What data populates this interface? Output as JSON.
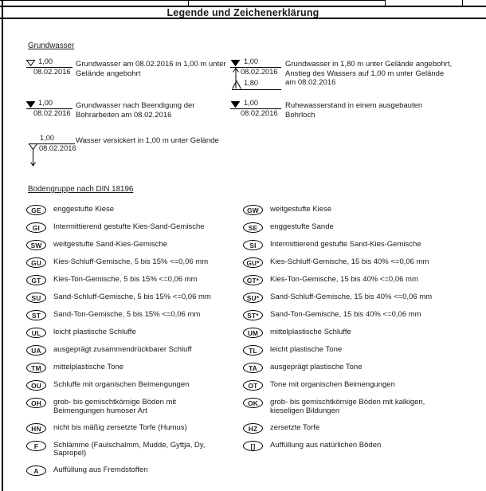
{
  "header": {
    "title": "Legende und Zeichenerklärung"
  },
  "groundwater": {
    "heading": "Grundwasser",
    "items": [
      {
        "symbol": "open-triangle",
        "depth": "1,00",
        "date": "08.02.2016",
        "desc": "Grundwasser am 08.02.2016 in 1,00 m unter Gelände angebohrt"
      },
      {
        "symbol": "filled-triangle",
        "depth": "1,00",
        "date": "08.02.2016",
        "desc": "Grundwasser nach Beendigung der Bohrarbeiten am 08.02.2016"
      },
      {
        "symbol": "open-triangle-seep-arrow",
        "depth": "1,00",
        "date": "08.02.2016",
        "desc": "Wasser versickert in 1,00 m unter Gelände"
      },
      {
        "symbol": "rise-composite",
        "depth": "1,00",
        "date": "08.02.2016",
        "depth2": "1,80",
        "desc": "Grundwasser in 1,80 m unter Gelände angebohrt, Anstieg des Wassers auf 1,00 m unter Gelände am 08.02.2016"
      },
      {
        "symbol": "filled-triangle",
        "depth": "1,00",
        "date": "08.02.2016",
        "desc": "Ruhewasserstand in einem ausgebauten Bohrloch"
      }
    ]
  },
  "soil": {
    "heading": "Bodengruppe nach DIN 18196",
    "left": [
      {
        "code": "GE",
        "desc": "enggestufte Kiese"
      },
      {
        "code": "GI",
        "desc": "Intermittierend gestufte Kies-Sand-Gemische"
      },
      {
        "code": "SW",
        "desc": "weitgestufte Sand-Kies-Gemische"
      },
      {
        "code": "GU",
        "desc": "Kies-Schluff-Gemische, 5 bis 15% <=0,06 mm"
      },
      {
        "code": "GT",
        "desc": "Kies-Ton-Gemische, 5 bis 15% <=0,06 mm"
      },
      {
        "code": "SU",
        "desc": "Sand-Schluff-Gemische, 5 bis 15% <=0,06 mm"
      },
      {
        "code": "ST",
        "desc": "Sand-Ton-Gemische, 5 bis 15% <=0,06 mm"
      },
      {
        "code": "UL",
        "desc": "leicht plastische Schluffe"
      },
      {
        "code": "UA",
        "desc": "ausgeprägt zusammendrückbarer Schluff"
      },
      {
        "code": "TM",
        "desc": "mittelplastische Tone"
      },
      {
        "code": "OU",
        "desc": "Schluffe mit organischen Beimengungen"
      },
      {
        "code": "OH",
        "desc": "grob- bis gemischtkörnige Böden mit Beimengungen humoser Art"
      },
      {
        "code": "HN",
        "desc": "nicht bis mäßig zersetzte Torfe (Humus)"
      },
      {
        "code": "F",
        "desc": "Schlämme (Faulschalmm, Mudde, Gyttja, Dy, Sapropel)"
      },
      {
        "code": "A",
        "desc": "Auffüllung aus Fremdstoffen"
      }
    ],
    "right": [
      {
        "code": "GW",
        "desc": "weitgestufte Kiese"
      },
      {
        "code": "SE",
        "desc": "enggestufte Sande"
      },
      {
        "code": "SI",
        "desc": "Intermittierend gestufte Sand-Kies-Gemische"
      },
      {
        "code": "GU*",
        "desc": "Kies-Schluff-Gemische, 15 bis 40% <=0,06 mm"
      },
      {
        "code": "GT*",
        "desc": "Kies-Ton-Gemische, 15 bis 40% <=0,06 mm"
      },
      {
        "code": "SU*",
        "desc": "Sand-Schluff-Gemische, 15 bis 40% <=0,06 mm"
      },
      {
        "code": "ST*",
        "desc": "Sand-Ton-Gemische, 15 bis 40% <=0,06 mm"
      },
      {
        "code": "UM",
        "desc": "mittelplastische Schluffe"
      },
      {
        "code": "TL",
        "desc": "leicht plastische Tone"
      },
      {
        "code": "TA",
        "desc": "ausgeprägt plastische Tone"
      },
      {
        "code": "OT",
        "desc": "Tone mit organischen Beimengungen"
      },
      {
        "code": "OK",
        "desc": "grob- bis gemischtkörnige Böden mit kalkigen, kieseligen Bildungen"
      },
      {
        "code": "HZ",
        "desc": "zersetzte Torfe"
      },
      {
        "code": "[]",
        "desc": "Auffüllung aus natürlichen Böden"
      }
    ]
  }
}
